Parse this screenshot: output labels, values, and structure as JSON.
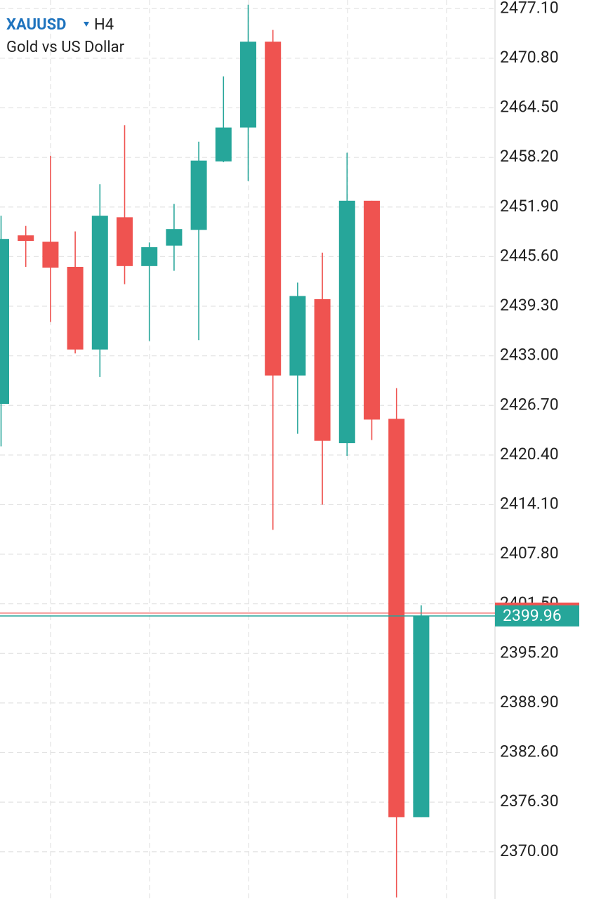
{
  "chart_data": {
    "type": "candlestick",
    "symbol": "XAUUSD",
    "timeframe": "H4",
    "title": "Gold vs US Dollar",
    "up_color": "#26a69a",
    "down_color": "#ef5350",
    "open": [
      2426.9,
      2448.3,
      2447.5,
      2444.3,
      2433.8,
      2450.6,
      2444.4,
      2447.0,
      2449.0,
      2457.7,
      2462.0,
      2472.9,
      2430.5,
      2440.2,
      2421.9,
      2452.7,
      2425.0,
      2374.4
    ],
    "high": [
      2450.8,
      2449.5,
      2458.4,
      2448.8,
      2454.8,
      2462.3,
      2447.4,
      2452.3,
      2460.2,
      2468.5,
      2477.6,
      2474.4,
      2442.3,
      2446.1,
      2458.8,
      2452.7,
      2428.9,
      2401.3
    ],
    "low": [
      2421.5,
      2444.3,
      2437.3,
      2433.3,
      2430.3,
      2442.1,
      2434.9,
      2443.8,
      2435.0,
      2457.6,
      2455.2,
      2410.9,
      2423.1,
      2414.1,
      2420.3,
      2422.3,
      2364.2,
      2374.4
    ],
    "close": [
      2447.85,
      2447.6,
      2444.2,
      2433.8,
      2450.8,
      2444.4,
      2446.8,
      2449.1,
      2457.8,
      2462.0,
      2472.9,
      2430.5,
      2440.6,
      2422.2,
      2452.7,
      2424.9,
      2374.4,
      2399.96
    ],
    "last_price": {
      "value": 2399.96,
      "label": "2399.96"
    },
    "ylim": [
      2364.0,
      2478.2
    ],
    "yticks": [
      {
        "value": 2477.1,
        "label": "2477.10"
      },
      {
        "value": 2470.8,
        "label": "2470.80"
      },
      {
        "value": 2464.5,
        "label": "2464.50"
      },
      {
        "value": 2458.2,
        "label": "2458.20"
      },
      {
        "value": 2451.9,
        "label": "2451.90"
      },
      {
        "value": 2445.6,
        "label": "2445.60"
      },
      {
        "value": 2439.3,
        "label": "2439.30"
      },
      {
        "value": 2433.0,
        "label": "2433.00"
      },
      {
        "value": 2426.7,
        "label": "2426.70"
      },
      {
        "value": 2420.4,
        "label": "2420.40"
      },
      {
        "value": 2414.1,
        "label": "2414.10"
      },
      {
        "value": 2407.8,
        "label": "2407.80"
      },
      {
        "value": 2401.5,
        "label": "2401.50"
      },
      {
        "value": 2395.2,
        "label": "2395.20"
      },
      {
        "value": 2388.9,
        "label": "2388.90"
      },
      {
        "value": 2382.6,
        "label": "2382.60"
      },
      {
        "value": 2376.3,
        "label": "2376.30"
      },
      {
        "value": 2370.0,
        "label": "2370.00"
      }
    ],
    "grid": true
  }
}
